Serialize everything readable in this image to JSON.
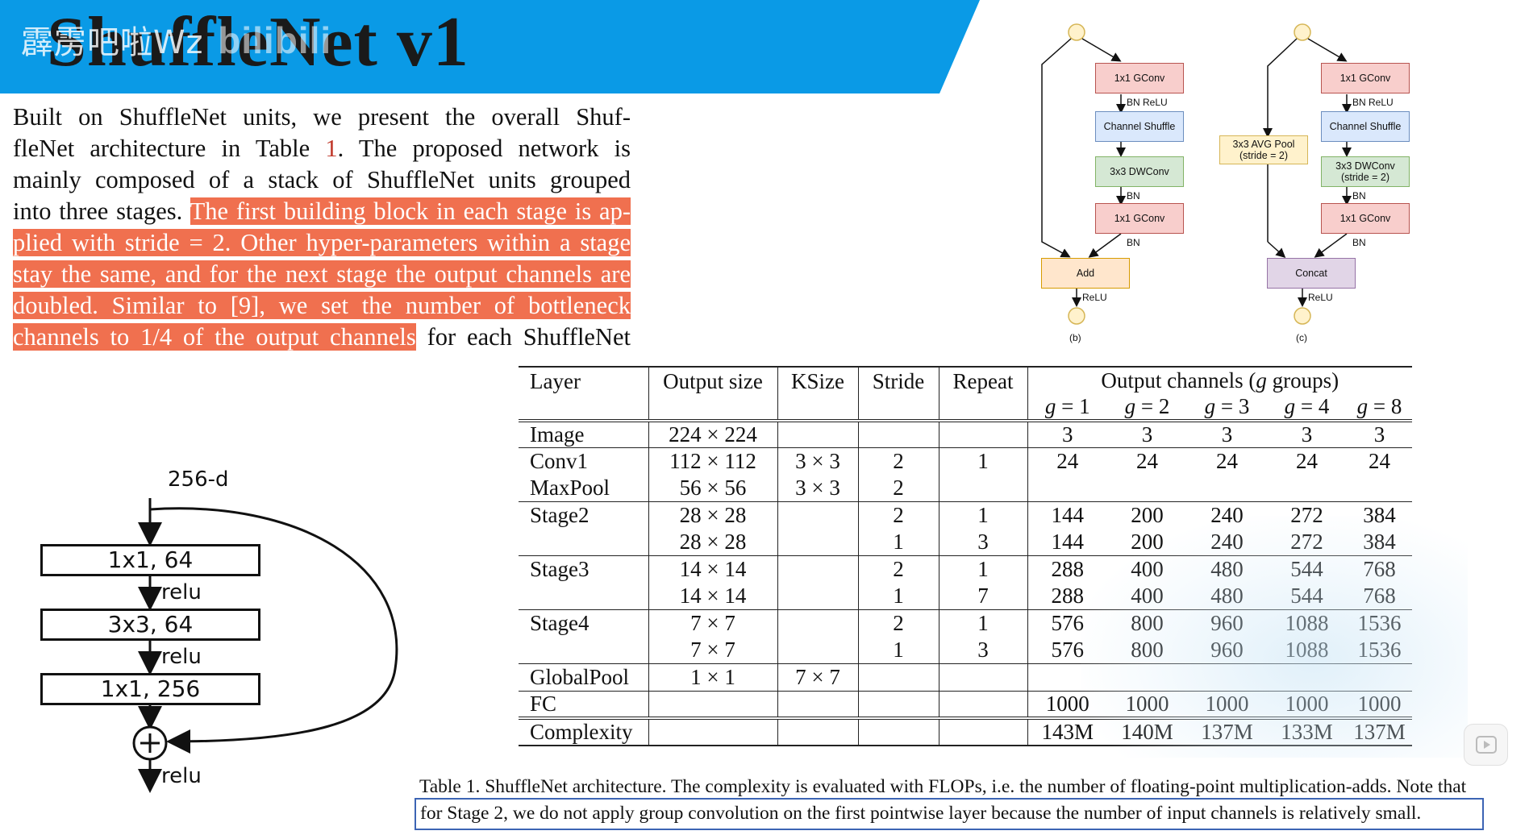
{
  "title": {
    "text": "ShuffleNet v1",
    "watermark": "霹雳吧啦Wz",
    "watermark_logo": "bilibili",
    "banner_color": "#0a9ae6"
  },
  "paragraph": {
    "lines": [
      [
        {
          "t": "Built on ShuffleNet units, we present the overall Shuf-",
          "hl": false
        }
      ],
      [
        {
          "t": "fleNet architecture in Table ",
          "hl": false
        },
        {
          "t": "1",
          "ref": true
        },
        {
          "t": ".  The proposed network is",
          "hl": false
        }
      ],
      [
        {
          "t": "mainly composed of a stack of ShuffleNet units grouped",
          "hl": false
        }
      ],
      [
        {
          "t": "into three stages. ",
          "hl": false
        },
        {
          "t": "The first building block in each stage is ap-",
          "hl": true
        }
      ],
      [
        {
          "t": "plied with stride = 2. Other hyper-parameters within a stage",
          "hl": true
        }
      ],
      [
        {
          "t": "stay the same, and for the next stage the output channels are",
          "hl": true
        }
      ],
      [
        {
          "t": "doubled.  Similar to  [9], we set the number of bottleneck",
          "hl": true
        }
      ],
      [
        {
          "t": "channels to 1/4 of the output channels",
          "hl": true
        },
        {
          "t": " for each ShuffleNet",
          "hl": false
        }
      ]
    ],
    "highlight_color": "#f0704f"
  },
  "bottleneck": {
    "input_label": "256-d",
    "blocks": [
      "1x1, 64",
      "3x3, 64",
      "1x1, 256"
    ],
    "relu_label": "relu",
    "add_symbol": "+"
  },
  "units": {
    "b": {
      "blocks": [
        "1x1 GConv",
        "Channel Shuffle",
        "3x3 DWConv",
        "1x1 GConv",
        "Add"
      ],
      "labels": [
        "BN ReLU",
        "BN",
        "BN",
        "ReLU"
      ],
      "caption": "(b)"
    },
    "c": {
      "blocks": [
        "1x1 GConv",
        "Channel Shuffle",
        "3x3 DWConv\n(stride = 2)",
        "1x1 GConv",
        "Concat"
      ],
      "side_block": "3x3 AVG Pool\n(stride = 2)",
      "labels": [
        "BN ReLU",
        "BN",
        "BN",
        "ReLU"
      ],
      "caption": "(c)"
    }
  },
  "table": {
    "headers": [
      "Layer",
      "Output size",
      "KSize",
      "Stride",
      "Repeat",
      "Output channels (g groups)"
    ],
    "group_headers": [
      "g = 1",
      "g = 2",
      "g = 3",
      "g = 4",
      "g = 8"
    ],
    "rows": [
      {
        "layer": "Image",
        "size": "224 × 224",
        "ksize": "",
        "stride": "",
        "repeat": "",
        "ch": [
          "3",
          "3",
          "3",
          "3",
          "3"
        ]
      },
      {
        "layer": "Conv1",
        "size": "112 × 112",
        "ksize": "3 × 3",
        "stride": "2",
        "repeat": "1",
        "ch": [
          "24",
          "24",
          "24",
          "24",
          "24"
        ]
      },
      {
        "layer": "MaxPool",
        "size": "56 × 56",
        "ksize": "3 × 3",
        "stride": "2",
        "repeat": "",
        "ch": [
          "",
          "",
          "",
          "",
          ""
        ]
      },
      {
        "layer": "Stage2",
        "size": "28 × 28",
        "ksize": "",
        "stride": "2",
        "repeat": "1",
        "ch": [
          "144",
          "200",
          "240",
          "272",
          "384"
        ]
      },
      {
        "layer": "",
        "size": "28 × 28",
        "ksize": "",
        "stride": "1",
        "repeat": "3",
        "ch": [
          "144",
          "200",
          "240",
          "272",
          "384"
        ]
      },
      {
        "layer": "Stage3",
        "size": "14 × 14",
        "ksize": "",
        "stride": "2",
        "repeat": "1",
        "ch": [
          "288",
          "400",
          "480",
          "544",
          "768"
        ]
      },
      {
        "layer": "",
        "size": "14 × 14",
        "ksize": "",
        "stride": "1",
        "repeat": "7",
        "ch": [
          "288",
          "400",
          "480",
          "544",
          "768"
        ]
      },
      {
        "layer": "Stage4",
        "size": "7 × 7",
        "ksize": "",
        "stride": "2",
        "repeat": "1",
        "ch": [
          "576",
          "800",
          "960",
          "1088",
          "1536"
        ]
      },
      {
        "layer": "",
        "size": "7 × 7",
        "ksize": "",
        "stride": "1",
        "repeat": "3",
        "ch": [
          "576",
          "800",
          "960",
          "1088",
          "1536"
        ]
      },
      {
        "layer": "GlobalPool",
        "size": "1 × 1",
        "ksize": "7 × 7",
        "stride": "",
        "repeat": "",
        "ch": [
          "",
          "",
          "",
          "",
          ""
        ]
      },
      {
        "layer": "FC",
        "size": "",
        "ksize": "",
        "stride": "",
        "repeat": "",
        "ch": [
          "1000",
          "1000",
          "1000",
          "1000",
          "1000"
        ]
      },
      {
        "layer": "Complexity",
        "size": "",
        "ksize": "",
        "stride": "",
        "repeat": "",
        "ch": [
          "143M",
          "140M",
          "137M",
          "133M",
          "137M"
        ]
      }
    ]
  },
  "caption": {
    "line1": "Table 1. ShuffleNet architecture. The complexity is evaluated with FLOPs, i.e. the number of floating-point multiplication-adds. Note that",
    "line2": "for Stage 2, we do not apply group convolution on the first pointwise layer because the number of input channels is relatively small.",
    "box_color": "#3c64b4"
  },
  "controls": {
    "play_icon": "play-icon"
  }
}
